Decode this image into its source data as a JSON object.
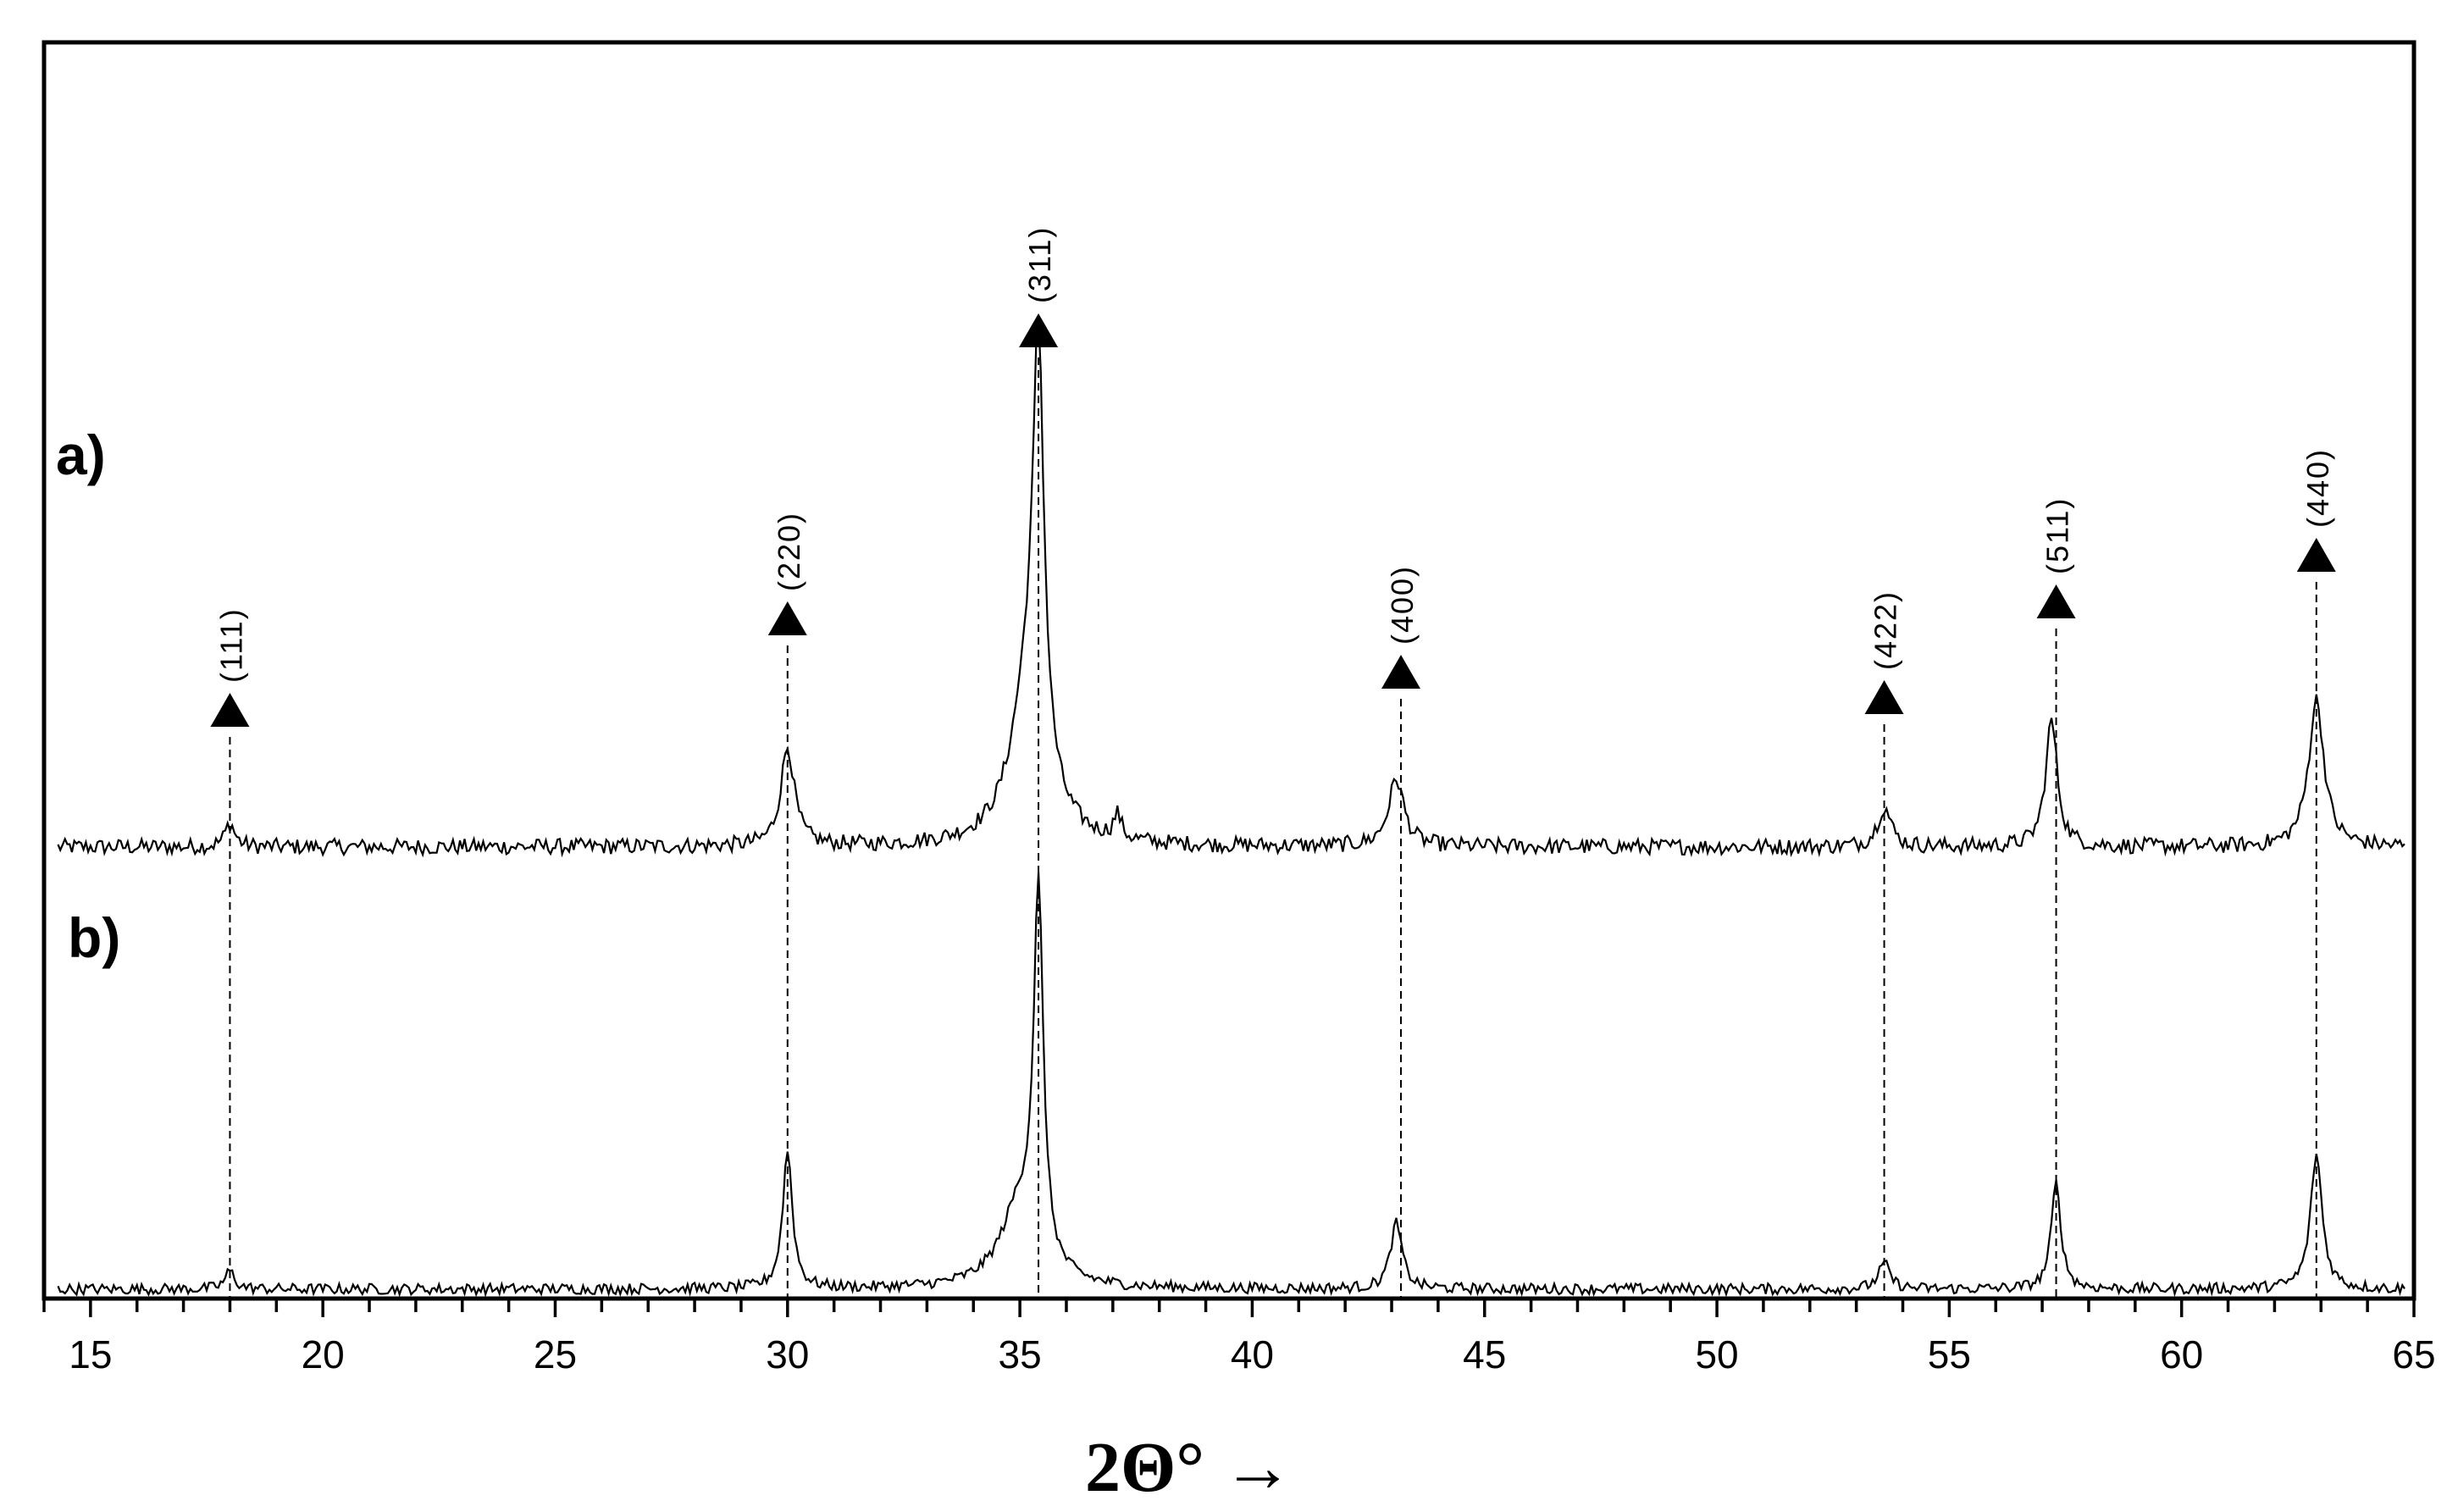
{
  "chart_data": {
    "type": "line",
    "title": "",
    "xlabel": "2Θ° →",
    "ylabel": "",
    "xlim": [
      14,
      65
    ],
    "grid": false,
    "legend": "none",
    "x_ticks": [
      15,
      20,
      25,
      30,
      35,
      40,
      45,
      50,
      55,
      60,
      65
    ],
    "series": [
      {
        "name": "a)",
        "baseline": 0.0,
        "peaks": [
          {
            "x": 18.0,
            "y": 0.06,
            "width": 0.25
          },
          {
            "x": 30.0,
            "y": 0.25,
            "width": 0.35
          },
          {
            "x": 35.4,
            "y": 1.0,
            "width": 0.28
          },
          {
            "x": 35.2,
            "y": 0.4,
            "width": 0.9
          },
          {
            "x": 37.1,
            "y": 0.06,
            "width": 0.2
          },
          {
            "x": 43.1,
            "y": 0.17,
            "width": 0.4
          },
          {
            "x": 53.6,
            "y": 0.1,
            "width": 0.35
          },
          {
            "x": 57.2,
            "y": 0.32,
            "width": 0.3
          },
          {
            "x": 62.9,
            "y": 0.37,
            "width": 0.4
          }
        ],
        "noise": 0.02
      },
      {
        "name": "b)",
        "baseline": 0.0,
        "peaks": [
          {
            "x": 18.0,
            "y": 0.05,
            "width": 0.25
          },
          {
            "x": 30.0,
            "y": 0.38,
            "width": 0.25
          },
          {
            "x": 35.4,
            "y": 1.0,
            "width": 0.25
          },
          {
            "x": 35.0,
            "y": 0.22,
            "width": 1.0
          },
          {
            "x": 43.1,
            "y": 0.18,
            "width": 0.3
          },
          {
            "x": 53.6,
            "y": 0.07,
            "width": 0.3
          },
          {
            "x": 57.3,
            "y": 0.29,
            "width": 0.25
          },
          {
            "x": 62.9,
            "y": 0.37,
            "width": 0.3
          }
        ],
        "noise": 0.015
      }
    ],
    "reflections": [
      {
        "label": "(111)",
        "x": 18.0
      },
      {
        "label": "(220)",
        "x": 30.0
      },
      {
        "label": "(311)",
        "x": 35.4
      },
      {
        "label": "(400)",
        "x": 43.2
      },
      {
        "label": "(422)",
        "x": 53.6
      },
      {
        "label": "(511)",
        "x": 57.3
      },
      {
        "label": "(440)",
        "x": 62.9
      }
    ]
  },
  "colors": {
    "line": "#000000",
    "background": "#ffffff"
  }
}
